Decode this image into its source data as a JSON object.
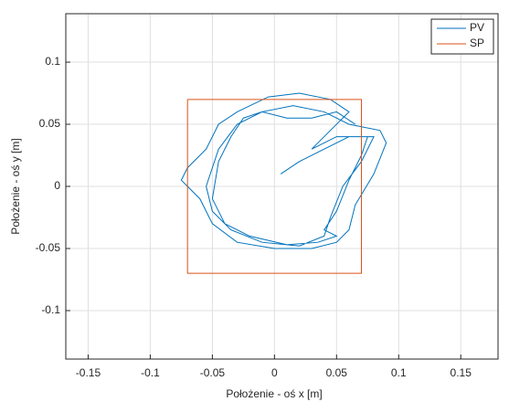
{
  "chart_data": {
    "type": "line",
    "xlabel": "Położenie - oś x [m]",
    "ylabel": "Położenie - oś y [m]",
    "xlim": [
      -0.168,
      0.18
    ],
    "ylim": [
      -0.139,
      0.139
    ],
    "xticks": [
      -0.15,
      -0.1,
      -0.05,
      0,
      0.05,
      0.1,
      0.15
    ],
    "yticks": [
      -0.1,
      -0.05,
      0,
      0.05,
      0.1
    ],
    "grid": true,
    "legend": "northeast",
    "series": [
      {
        "name": "PV",
        "color": "#0072bd",
        "x": [
          0.005,
          0.02,
          0.04,
          0.06,
          0.08,
          0.07,
          0.055,
          0.045,
          0.04,
          0.02,
          -0.01,
          -0.035,
          -0.05,
          -0.055,
          -0.045,
          -0.03,
          -0.01,
          0.015,
          0.04,
          0.06,
          0.085,
          0.09,
          0.08,
          0.065,
          0.06,
          0.05,
          0.03,
          0,
          -0.03,
          -0.05,
          -0.06,
          -0.07,
          -0.075,
          -0.07,
          -0.055,
          -0.045,
          -0.03,
          -0.005,
          0.02,
          0.045,
          0.06,
          0.045,
          0.03,
          0.05,
          0.075,
          0.07,
          0.06,
          0.05,
          0.04,
          0.05,
          0.035,
          0.01,
          -0.02,
          -0.04,
          -0.05,
          -0.045,
          -0.035,
          -0.025,
          -0.01,
          0.01,
          0.03,
          0.05,
          0.065
        ],
        "values": [
          0.01,
          0.02,
          0.03,
          0.04,
          0.04,
          0.02,
          0,
          -0.025,
          -0.04,
          -0.048,
          -0.045,
          -0.035,
          -0.02,
          0,
          0.03,
          0.05,
          0.06,
          0.065,
          0.06,
          0.05,
          0.045,
          0.035,
          0.01,
          -0.015,
          -0.035,
          -0.045,
          -0.05,
          -0.05,
          -0.045,
          -0.03,
          -0.01,
          0,
          0.005,
          0.015,
          0.03,
          0.05,
          0.06,
          0.072,
          0.075,
          0.07,
          0.06,
          0.045,
          0.03,
          0.04,
          0.04,
          0.025,
          0.005,
          -0.02,
          -0.035,
          -0.04,
          -0.045,
          -0.047,
          -0.04,
          -0.03,
          -0.01,
          0.02,
          0.04,
          0.055,
          0.06,
          0.055,
          0.055,
          0.06,
          0.05
        ]
      },
      {
        "name": "SP",
        "color": "#d95319",
        "x": [
          -0.07,
          0.07,
          0.07,
          -0.07,
          -0.07
        ],
        "values": [
          0.07,
          0.07,
          -0.07,
          -0.07,
          0.07
        ]
      }
    ]
  }
}
